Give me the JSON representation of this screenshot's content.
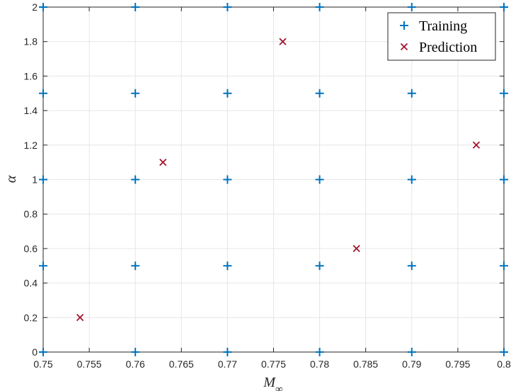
{
  "chart_data": {
    "type": "scatter",
    "xlabel": "M∞",
    "ylabel": "α",
    "xlim": [
      0.75,
      0.8
    ],
    "ylim": [
      0,
      2
    ],
    "xticks": [
      0.75,
      0.755,
      0.76,
      0.765,
      0.77,
      0.775,
      0.78,
      0.785,
      0.79,
      0.795,
      0.8
    ],
    "xtick_labels": [
      "0.75",
      "0.755",
      "0.76",
      "0.765",
      "0.77",
      "0.775",
      "0.78",
      "0.785",
      "0.79",
      "0.795",
      "0.8"
    ],
    "yticks": [
      0,
      0.2,
      0.4,
      0.6,
      0.8,
      1,
      1.2,
      1.4,
      1.6,
      1.8,
      2
    ],
    "ytick_labels": [
      "0",
      "0.2",
      "0.4",
      "0.6",
      "0.8",
      "1",
      "1.2",
      "1.4",
      "1.6",
      "1.8",
      "2"
    ],
    "grid": true,
    "legend_position": "top-right",
    "series": [
      {
        "name": "Training",
        "marker": "plus",
        "color": "#0072bd",
        "points": [
          {
            "x": 0.75,
            "y": 0
          },
          {
            "x": 0.76,
            "y": 0
          },
          {
            "x": 0.77,
            "y": 0
          },
          {
            "x": 0.78,
            "y": 0
          },
          {
            "x": 0.79,
            "y": 0
          },
          {
            "x": 0.8,
            "y": 0
          },
          {
            "x": 0.75,
            "y": 0.5
          },
          {
            "x": 0.76,
            "y": 0.5
          },
          {
            "x": 0.77,
            "y": 0.5
          },
          {
            "x": 0.78,
            "y": 0.5
          },
          {
            "x": 0.79,
            "y": 0.5
          },
          {
            "x": 0.8,
            "y": 0.5
          },
          {
            "x": 0.75,
            "y": 1
          },
          {
            "x": 0.76,
            "y": 1
          },
          {
            "x": 0.77,
            "y": 1
          },
          {
            "x": 0.78,
            "y": 1
          },
          {
            "x": 0.79,
            "y": 1
          },
          {
            "x": 0.8,
            "y": 1
          },
          {
            "x": 0.75,
            "y": 1.5
          },
          {
            "x": 0.76,
            "y": 1.5
          },
          {
            "x": 0.77,
            "y": 1.5
          },
          {
            "x": 0.78,
            "y": 1.5
          },
          {
            "x": 0.79,
            "y": 1.5
          },
          {
            "x": 0.8,
            "y": 1.5
          },
          {
            "x": 0.75,
            "y": 2
          },
          {
            "x": 0.76,
            "y": 2
          },
          {
            "x": 0.77,
            "y": 2
          },
          {
            "x": 0.78,
            "y": 2
          },
          {
            "x": 0.79,
            "y": 2
          },
          {
            "x": 0.8,
            "y": 2
          }
        ]
      },
      {
        "name": "Prediction",
        "marker": "cross",
        "color": "#a2142f",
        "points": [
          {
            "x": 0.754,
            "y": 0.2
          },
          {
            "x": 0.763,
            "y": 1.1
          },
          {
            "x": 0.776,
            "y": 1.8
          },
          {
            "x": 0.784,
            "y": 0.6
          },
          {
            "x": 0.797,
            "y": 1.2
          }
        ]
      }
    ]
  }
}
